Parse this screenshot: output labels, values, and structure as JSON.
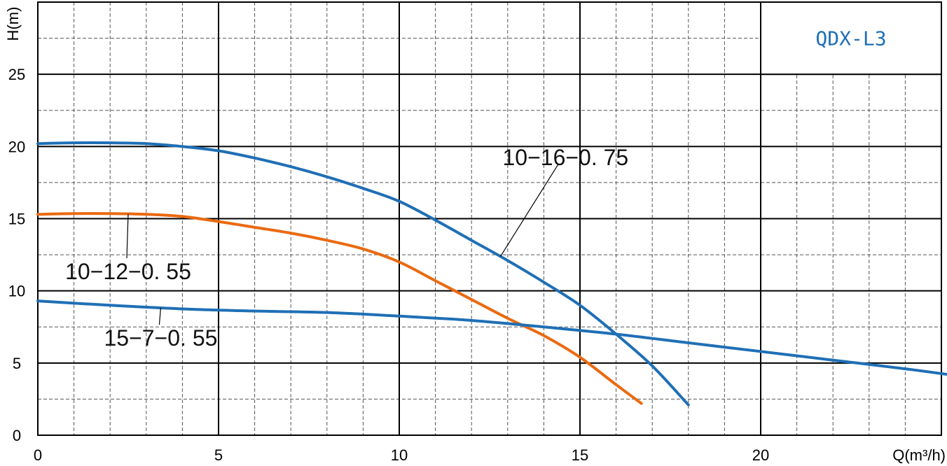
{
  "chart_data": {
    "type": "line",
    "title": "QDX-L3",
    "xlabel": "Q(m³/h)",
    "ylabel": "H(m)",
    "xlim": [
      0,
      25
    ],
    "ylim": [
      0,
      30
    ],
    "xticks": [
      0,
      5,
      10,
      15,
      20
    ],
    "yticks": [
      0,
      5,
      10,
      15,
      20,
      25
    ],
    "grid": true,
    "series": [
      {
        "name": "10-16-0.75",
        "label_text": "10−16−0. 75",
        "color": "#1f6fb5",
        "points": [
          [
            0,
            20.2
          ],
          [
            1,
            20.25
          ],
          [
            2,
            20.25
          ],
          [
            3,
            20.2
          ],
          [
            4,
            20.0
          ],
          [
            5,
            19.7
          ],
          [
            6,
            19.2
          ],
          [
            7,
            18.6
          ],
          [
            8,
            17.9
          ],
          [
            9,
            17.1
          ],
          [
            10,
            16.2
          ],
          [
            11,
            14.9
          ],
          [
            12,
            13.5
          ],
          [
            13,
            12.1
          ],
          [
            14,
            10.6
          ],
          [
            15,
            9.0
          ],
          [
            16,
            7.0
          ],
          [
            17,
            4.8
          ],
          [
            18,
            2.1
          ]
        ],
        "callout": {
          "curve_x": 12.8,
          "text_x": 14.6,
          "text_y": 18.7
        }
      },
      {
        "name": "10-12-0.55",
        "label_text": "10−12−0. 55",
        "color": "#ea6a10",
        "points": [
          [
            0,
            15.3
          ],
          [
            1,
            15.35
          ],
          [
            2,
            15.35
          ],
          [
            3,
            15.3
          ],
          [
            4,
            15.15
          ],
          [
            5,
            14.8
          ],
          [
            6,
            14.4
          ],
          [
            7,
            14.0
          ],
          [
            8,
            13.5
          ],
          [
            9,
            12.9
          ],
          [
            10,
            12.0
          ],
          [
            11,
            10.7
          ],
          [
            12,
            9.4
          ],
          [
            13,
            8.1
          ],
          [
            14,
            6.9
          ],
          [
            15,
            5.4
          ],
          [
            16,
            3.5
          ],
          [
            16.7,
            2.2
          ]
        ],
        "callout": {
          "curve_x": 2.5,
          "text_x": 2.5,
          "text_y": 10.8
        }
      },
      {
        "name": "15-7-0.55",
        "label_text": "15−7−0. 55",
        "color": "#1f6fb5",
        "points": [
          [
            0,
            9.3
          ],
          [
            2,
            9.0
          ],
          [
            4,
            8.75
          ],
          [
            6,
            8.6
          ],
          [
            8,
            8.5
          ],
          [
            10,
            8.25
          ],
          [
            12,
            7.95
          ],
          [
            14,
            7.5
          ],
          [
            16,
            7.0
          ],
          [
            18,
            6.4
          ],
          [
            20,
            5.8
          ],
          [
            22,
            5.2
          ],
          [
            24,
            4.6
          ],
          [
            25.5,
            4.1
          ]
        ],
        "callout": {
          "curve_x": 3.4,
          "text_x": 3.4,
          "text_y": 6.2
        }
      }
    ]
  }
}
